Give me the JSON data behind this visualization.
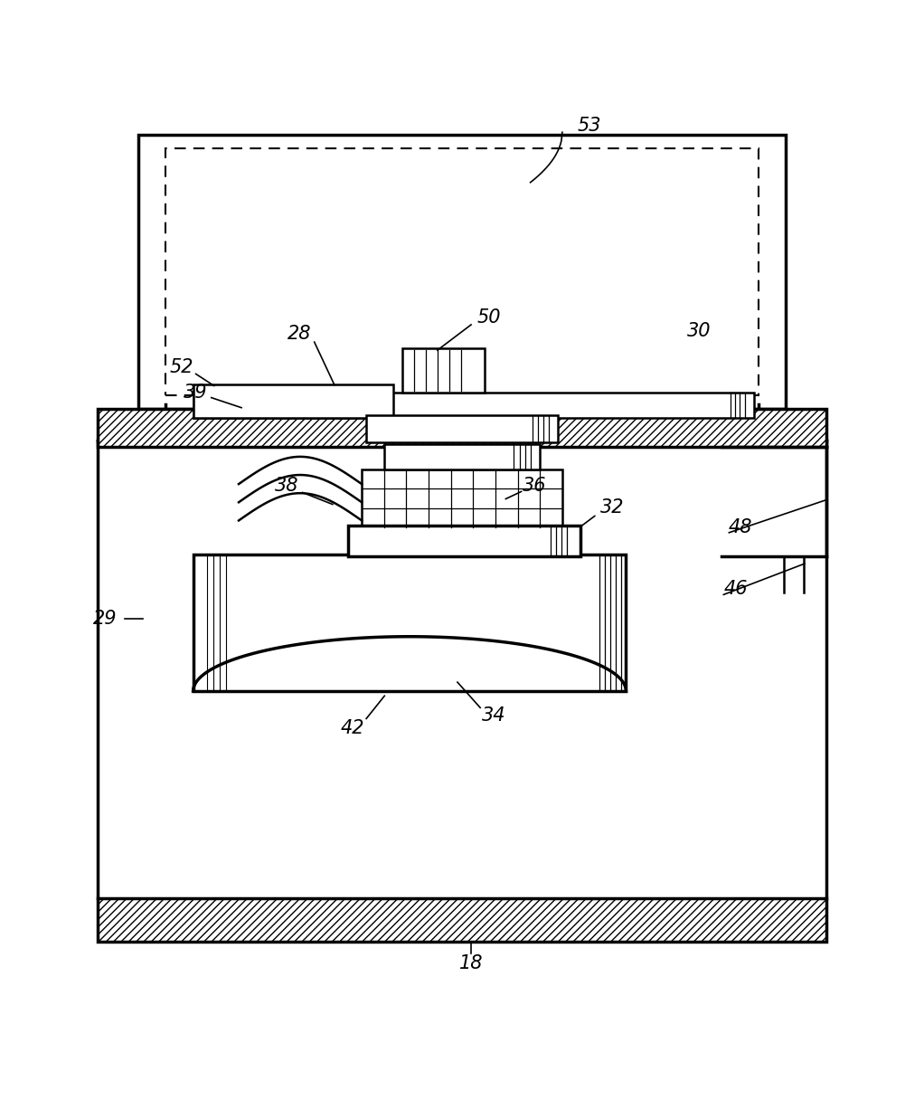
{
  "bg_color": "#ffffff",
  "line_color": "#000000",
  "fig_width": 10.22,
  "fig_height": 12.26
}
